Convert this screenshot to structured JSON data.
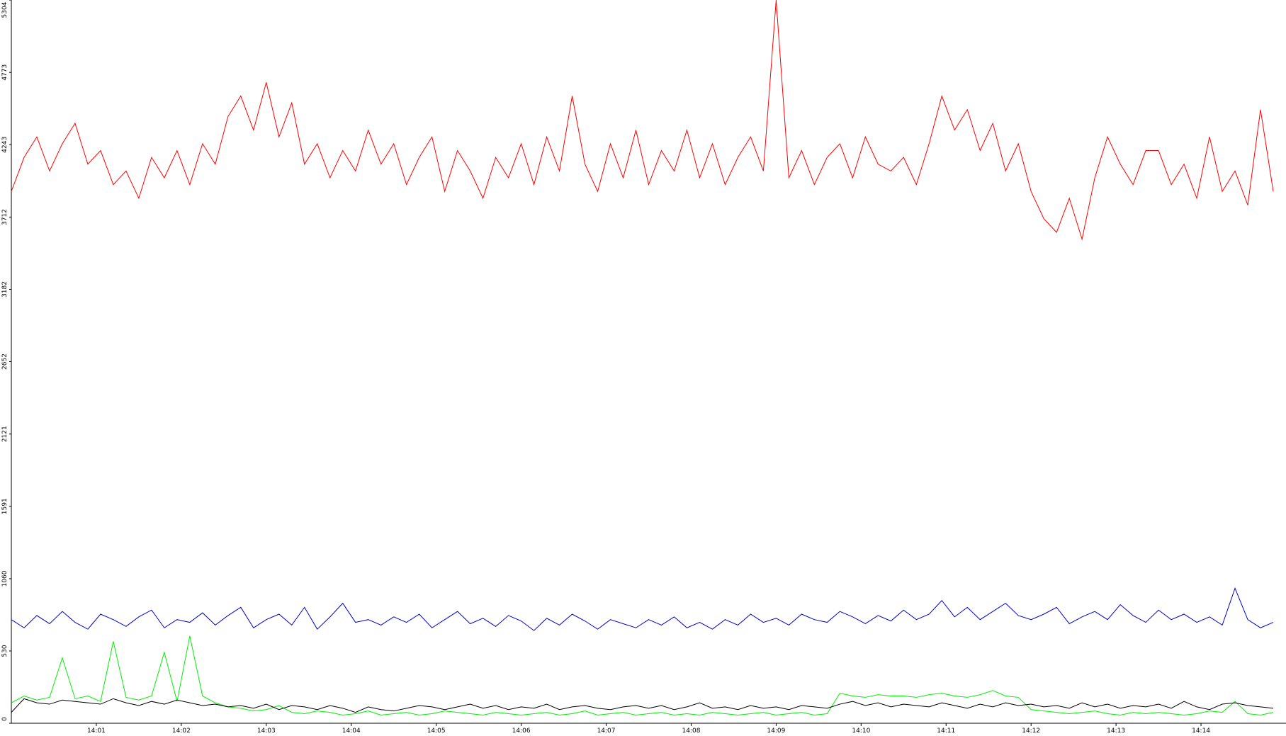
{
  "chart_data": {
    "type": "line",
    "x": [
      0,
      0.15,
      0.3,
      0.45,
      0.6,
      0.75,
      0.9,
      1.05,
      1.2,
      1.35,
      1.5,
      1.65,
      1.8,
      1.95,
      2.1,
      2.25,
      2.4,
      2.55,
      2.7,
      2.85,
      3,
      3.15,
      3.3,
      3.45,
      3.6,
      3.75,
      3.9,
      4.05,
      4.2,
      4.35,
      4.5,
      4.65,
      4.8,
      4.95,
      5.1,
      5.25,
      5.4,
      5.55,
      5.7,
      5.85,
      6,
      6.15,
      6.3,
      6.45,
      6.6,
      6.75,
      6.9,
      7.05,
      7.2,
      7.35,
      7.5,
      7.65,
      7.8,
      7.95,
      8.1,
      8.25,
      8.4,
      8.55,
      8.7,
      8.85,
      9,
      9.15,
      9.3,
      9.45,
      9.6,
      9.75,
      9.9,
      10.05,
      10.2,
      10.35,
      10.5,
      10.65,
      10.8,
      10.95,
      11.1,
      11.25,
      11.4,
      11.55,
      11.7,
      11.85,
      12,
      12.15,
      12.3,
      12.45,
      12.6,
      12.75,
      12.9,
      13.05,
      13.2,
      13.35,
      13.5,
      13.65,
      13.8,
      13.95,
      14.1,
      14.25,
      14.4,
      14.55,
      14.7,
      14.85
    ],
    "series": [
      {
        "color": "#ff0000",
        "values": [
          3900,
          4150,
          4300,
          4050,
          4250,
          4400,
          4100,
          4200,
          3950,
          4050,
          3850,
          4150,
          4000,
          4200,
          3950,
          4250,
          4100,
          4450,
          4600,
          4350,
          4700,
          4300,
          4550,
          4100,
          4250,
          4000,
          4200,
          4050,
          4350,
          4100,
          4250,
          3950,
          4150,
          4300,
          3900,
          4200,
          4050,
          3850,
          4150,
          4000,
          4250,
          3950,
          4300,
          4050,
          4600,
          4100,
          3900,
          4250,
          4000,
          4350,
          3950,
          4200,
          4050,
          4350,
          4000,
          4250,
          3950,
          4150,
          4300,
          4050,
          5304,
          4000,
          4200,
          3950,
          4150,
          4250,
          4000,
          4300,
          4100,
          4050,
          4150,
          3950,
          4250,
          4600,
          4350,
          4500,
          4200,
          4400,
          4050,
          4250,
          3900,
          3700,
          3600,
          3850,
          3550,
          4000,
          4300,
          4100,
          3950,
          4200,
          4200,
          3950,
          4100,
          3850,
          4300,
          3900,
          4050,
          3800,
          4500,
          3900
        ]
      },
      {
        "color": "#0000cc",
        "values": [
          760,
          700,
          790,
          730,
          820,
          740,
          690,
          800,
          760,
          710,
          780,
          830,
          700,
          760,
          740,
          810,
          720,
          790,
          850,
          700,
          760,
          800,
          720,
          850,
          690,
          780,
          880,
          740,
          760,
          720,
          780,
          740,
          800,
          700,
          760,
          820,
          730,
          770,
          710,
          790,
          750,
          680,
          770,
          720,
          800,
          750,
          690,
          760,
          730,
          700,
          760,
          720,
          780,
          700,
          740,
          690,
          760,
          720,
          800,
          740,
          770,
          720,
          800,
          760,
          740,
          820,
          780,
          730,
          790,
          750,
          830,
          760,
          800,
          900,
          780,
          850,
          760,
          820,
          880,
          790,
          760,
          800,
          850,
          730,
          780,
          820,
          760,
          870,
          790,
          740,
          830,
          760,
          800,
          740,
          780,
          720,
          990,
          760,
          700,
          740
        ]
      },
      {
        "color": "#00ee00",
        "values": [
          150,
          200,
          170,
          190,
          480,
          180,
          200,
          160,
          600,
          190,
          170,
          200,
          520,
          160,
          640,
          200,
          150,
          120,
          110,
          90,
          100,
          130,
          80,
          70,
          90,
          80,
          60,
          70,
          90,
          60,
          70,
          80,
          60,
          70,
          90,
          80,
          70,
          60,
          80,
          70,
          60,
          70,
          80,
          60,
          70,
          90,
          60,
          70,
          80,
          60,
          70,
          80,
          60,
          70,
          60,
          80,
          70,
          60,
          70,
          80,
          60,
          70,
          80,
          60,
          70,
          220,
          200,
          190,
          210,
          200,
          200,
          190,
          210,
          220,
          200,
          190,
          210,
          240,
          200,
          190,
          100,
          90,
          80,
          70,
          80,
          90,
          70,
          60,
          80,
          70,
          80,
          70,
          60,
          70,
          90,
          80,
          160,
          70,
          60,
          80
        ]
      },
      {
        "color": "#000000",
        "values": [
          80,
          180,
          150,
          140,
          170,
          160,
          150,
          140,
          180,
          150,
          130,
          160,
          140,
          170,
          150,
          130,
          140,
          120,
          130,
          110,
          140,
          100,
          130,
          120,
          100,
          130,
          110,
          80,
          120,
          100,
          90,
          110,
          130,
          120,
          100,
          120,
          140,
          110,
          130,
          100,
          120,
          110,
          140,
          100,
          120,
          130,
          110,
          100,
          120,
          130,
          110,
          130,
          100,
          120,
          150,
          110,
          120,
          100,
          130,
          110,
          120,
          100,
          130,
          120,
          110,
          140,
          160,
          130,
          150,
          120,
          140,
          130,
          120,
          150,
          130,
          110,
          140,
          120,
          150,
          130,
          140,
          120,
          130,
          110,
          150,
          120,
          140,
          110,
          130,
          120,
          140,
          110,
          160,
          120,
          100,
          140,
          150,
          130,
          120,
          110
        ]
      }
    ],
    "xlim": [
      0,
      15
    ],
    "xticks": [
      {
        "value": 1,
        "label": "14:01"
      },
      {
        "value": 2,
        "label": "14:02"
      },
      {
        "value": 3,
        "label": "14:03"
      },
      {
        "value": 4,
        "label": "14:04"
      },
      {
        "value": 5,
        "label": "14:05"
      },
      {
        "value": 6,
        "label": "14:06"
      },
      {
        "value": 7,
        "label": "14:07"
      },
      {
        "value": 8,
        "label": "14:08"
      },
      {
        "value": 9,
        "label": "14:09"
      },
      {
        "value": 10,
        "label": "14:10"
      },
      {
        "value": 11,
        "label": "14:11"
      },
      {
        "value": 12,
        "label": "14:12"
      },
      {
        "value": 13,
        "label": "14:13"
      },
      {
        "value": 14,
        "label": "14:14"
      }
    ],
    "ylim": [
      0,
      5304
    ],
    "yticks": [
      0,
      530,
      1060,
      1591,
      2121,
      2652,
      3182,
      3712,
      4243,
      4773,
      5304
    ]
  }
}
